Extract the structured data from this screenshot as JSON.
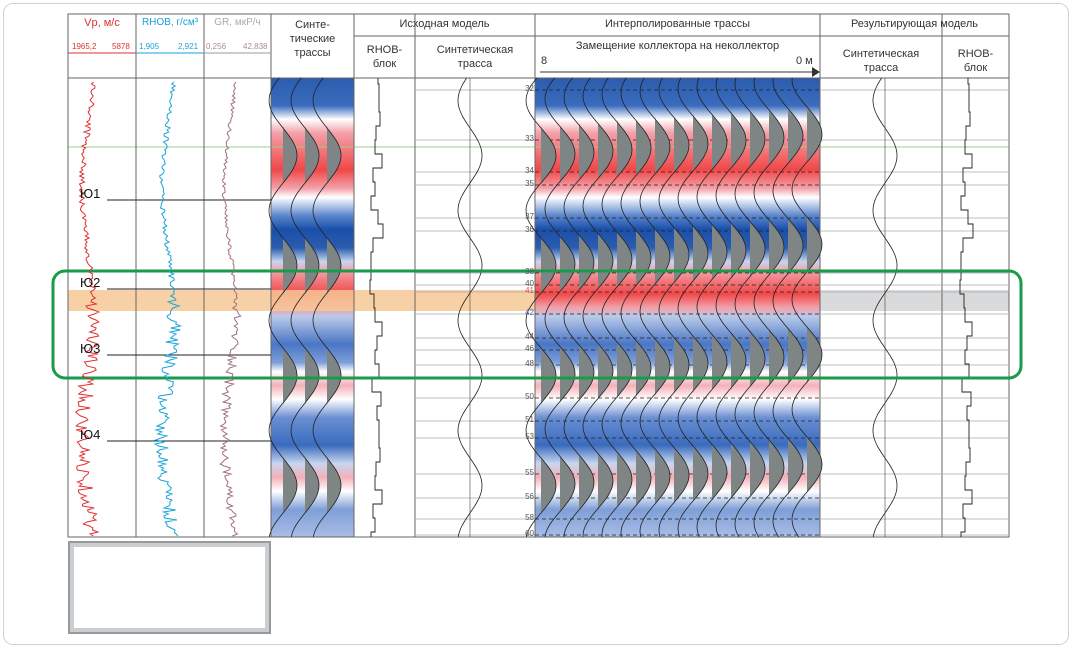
{
  "logs": {
    "vp": {
      "label": "Vp, м/с",
      "min": "1965,2",
      "max": "5878",
      "color": "#e03030"
    },
    "rhob": {
      "label": "RHOB, г/см³",
      "min": "1,905",
      "max": "2,921",
      "color": "#1aa3d8"
    },
    "gr": {
      "label": "GR, мкР/ч",
      "min": "0,256",
      "max": "42,838",
      "color": "#a07080"
    }
  },
  "headers": {
    "synthetic_traces": [
      "Синте-",
      "тические",
      "трассы"
    ],
    "initial_model": "Исходная модель",
    "rhob_block": [
      "RHOB-",
      "блок"
    ],
    "synthetic_trace": [
      "Синтетическая",
      "трасса"
    ],
    "interpolated": "Интерполированные трассы",
    "replacement": "Замещение коллектора на неколлектор",
    "scale_start": "8",
    "scale_end": "0 м",
    "result_model": "Результирующая модель"
  },
  "horizons": [
    "Ю1",
    "Ю2",
    "Ю3",
    "Ю4"
  ],
  "depth_marks": [
    "32",
    "33",
    "34",
    "35",
    "37",
    "36",
    "38",
    "40",
    "41",
    "42",
    "44",
    "46",
    "48",
    "50",
    "51",
    "53",
    "55",
    "56",
    "58",
    "60"
  ],
  "highlight_color": "#1a9a4a",
  "reservoir_color": "#f7c896"
}
